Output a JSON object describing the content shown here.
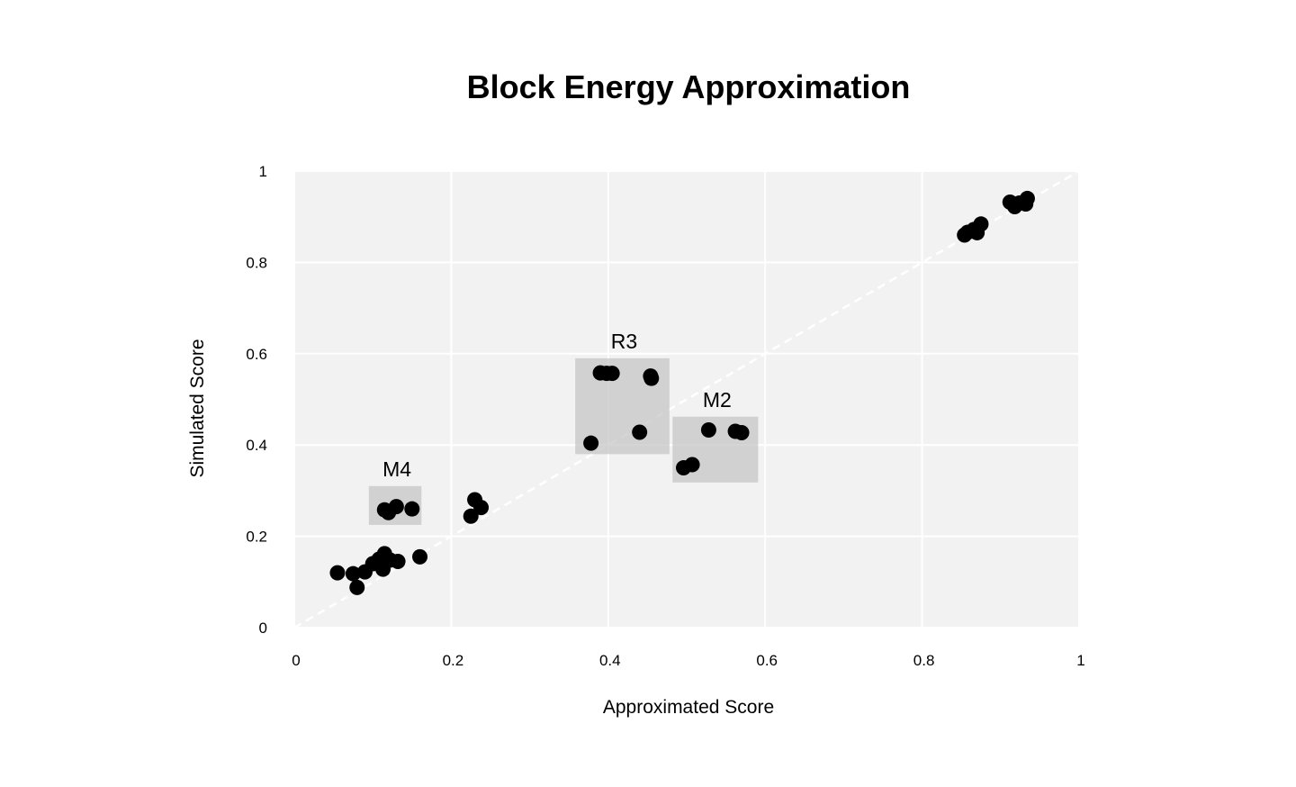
{
  "chart_data": {
    "type": "scatter",
    "title": "Block Energy Approximation",
    "xlabel": "Approximated Score",
    "ylabel": "Simulated Score",
    "xlim": [
      0,
      1
    ],
    "ylim": [
      0,
      1
    ],
    "xticks": [
      0,
      0.2,
      0.4,
      0.6,
      0.8,
      1
    ],
    "xtick_labels": [
      "0",
      "0.2",
      "0.4",
      "0.6",
      "0.8",
      "1"
    ],
    "yticks": [
      0,
      0.2,
      0.4,
      0.6,
      0.8,
      1
    ],
    "ytick_labels": [
      "0",
      "0.2",
      "0.4",
      "0.6",
      "0.8",
      "1"
    ],
    "grid": true,
    "reference_line": {
      "style": "dashed",
      "color": "#ffffff",
      "from": [
        0,
        0
      ],
      "to": [
        1,
        1
      ]
    },
    "colors": {
      "points": "#000000",
      "plot_background": "#f2f2f2",
      "grid": "#ffffff",
      "boxes": "#bfbfbf"
    },
    "points": [
      [
        0.055,
        0.12
      ],
      [
        0.075,
        0.118
      ],
      [
        0.08,
        0.088
      ],
      [
        0.09,
        0.122
      ],
      [
        0.1,
        0.14
      ],
      [
        0.108,
        0.15
      ],
      [
        0.113,
        0.128
      ],
      [
        0.115,
        0.162
      ],
      [
        0.122,
        0.148
      ],
      [
        0.132,
        0.145
      ],
      [
        0.16,
        0.155
      ],
      [
        0.115,
        0.258
      ],
      [
        0.12,
        0.252
      ],
      [
        0.13,
        0.265
      ],
      [
        0.15,
        0.26
      ],
      [
        0.225,
        0.244
      ],
      [
        0.23,
        0.28
      ],
      [
        0.238,
        0.263
      ],
      [
        0.378,
        0.404
      ],
      [
        0.39,
        0.558
      ],
      [
        0.398,
        0.557
      ],
      [
        0.405,
        0.557
      ],
      [
        0.44,
        0.428
      ],
      [
        0.454,
        0.551
      ],
      [
        0.455,
        0.546
      ],
      [
        0.496,
        0.35
      ],
      [
        0.507,
        0.357
      ],
      [
        0.528,
        0.433
      ],
      [
        0.562,
        0.43
      ],
      [
        0.57,
        0.427
      ],
      [
        0.854,
        0.86
      ],
      [
        0.858,
        0.866
      ],
      [
        0.866,
        0.872
      ],
      [
        0.87,
        0.865
      ],
      [
        0.875,
        0.884
      ],
      [
        0.912,
        0.932
      ],
      [
        0.918,
        0.922
      ],
      [
        0.924,
        0.93
      ],
      [
        0.932,
        0.928
      ],
      [
        0.934,
        0.94
      ]
    ],
    "annotations": [
      {
        "label": "M4",
        "x0": 0.095,
        "x1": 0.162,
        "y0": 0.225,
        "y1": 0.31
      },
      {
        "label": "R3",
        "x0": 0.358,
        "x1": 0.478,
        "y0": 0.38,
        "y1": 0.59
      },
      {
        "label": "M2",
        "x0": 0.482,
        "x1": 0.591,
        "y0": 0.318,
        "y1": 0.462
      }
    ]
  }
}
